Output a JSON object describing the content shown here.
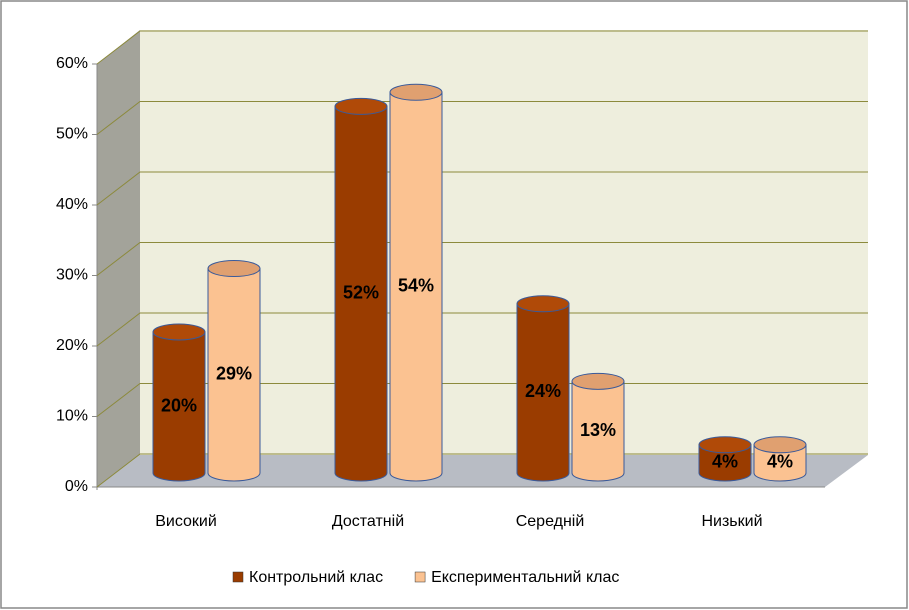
{
  "chart_data": {
    "type": "bar",
    "categories": [
      "Високий",
      "Достатній",
      "Середній",
      "Низький"
    ],
    "series": [
      {
        "name": "Контрольний клас",
        "color": "#9a3c00",
        "values": [
          20,
          52,
          24,
          4
        ],
        "value_labels": [
          "20%",
          "52%",
          "24%",
          "4%"
        ]
      },
      {
        "name": "Експериментальний клас",
        "color": "#fbc291",
        "values": [
          29,
          54,
          13,
          4
        ],
        "value_labels": [
          "29%",
          "54%",
          "13%",
          "4%"
        ]
      }
    ],
    "ylim": [
      0,
      60
    ],
    "yticks": [
      {
        "value": 0,
        "label": "0%"
      },
      {
        "value": 10,
        "label": "10%"
      },
      {
        "value": 20,
        "label": "20%"
      },
      {
        "value": 30,
        "label": "30%"
      },
      {
        "value": 40,
        "label": "40%"
      },
      {
        "value": 50,
        "label": "50%"
      },
      {
        "value": 60,
        "label": "60%"
      }
    ],
    "grid": true
  }
}
